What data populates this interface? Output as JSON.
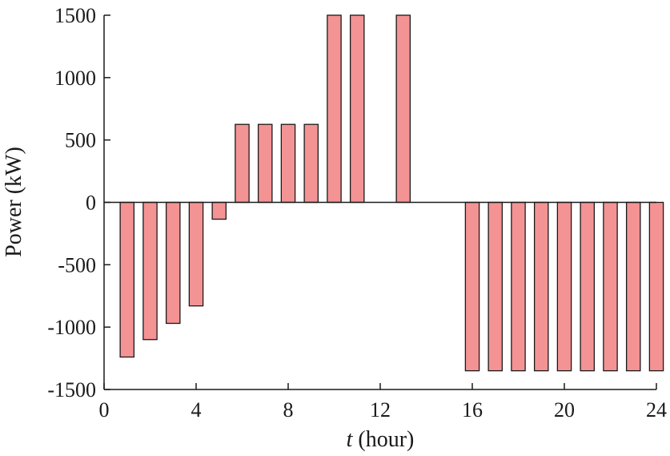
{
  "chart_data": {
    "type": "bar",
    "title": "",
    "xlabel_var": "t",
    "xlabel_unit": " (hour)",
    "ylabel": "Power (kW)",
    "xlim": [
      0,
      24
    ],
    "ylim": [
      -1500,
      1500
    ],
    "xticks": [
      0,
      4,
      8,
      12,
      16,
      20,
      24
    ],
    "yticks": [
      1500,
      1000,
      500,
      0,
      -500,
      -1000,
      -1500
    ],
    "bar_color": "#f49394",
    "edge_color": "#1a1a1a",
    "grid": false,
    "x": [
      1,
      2,
      3,
      4,
      5,
      6,
      7,
      8,
      9,
      10,
      11,
      12,
      13,
      14,
      15,
      16,
      17,
      18,
      19,
      20,
      21,
      22,
      23,
      24
    ],
    "values": [
      -1240,
      -1100,
      -970,
      -830,
      -135,
      625,
      625,
      625,
      625,
      1500,
      1500,
      0,
      1500,
      0,
      0,
      -1350,
      -1350,
      -1350,
      -1350,
      -1350,
      -1350,
      -1350,
      -1350,
      -1350
    ]
  }
}
